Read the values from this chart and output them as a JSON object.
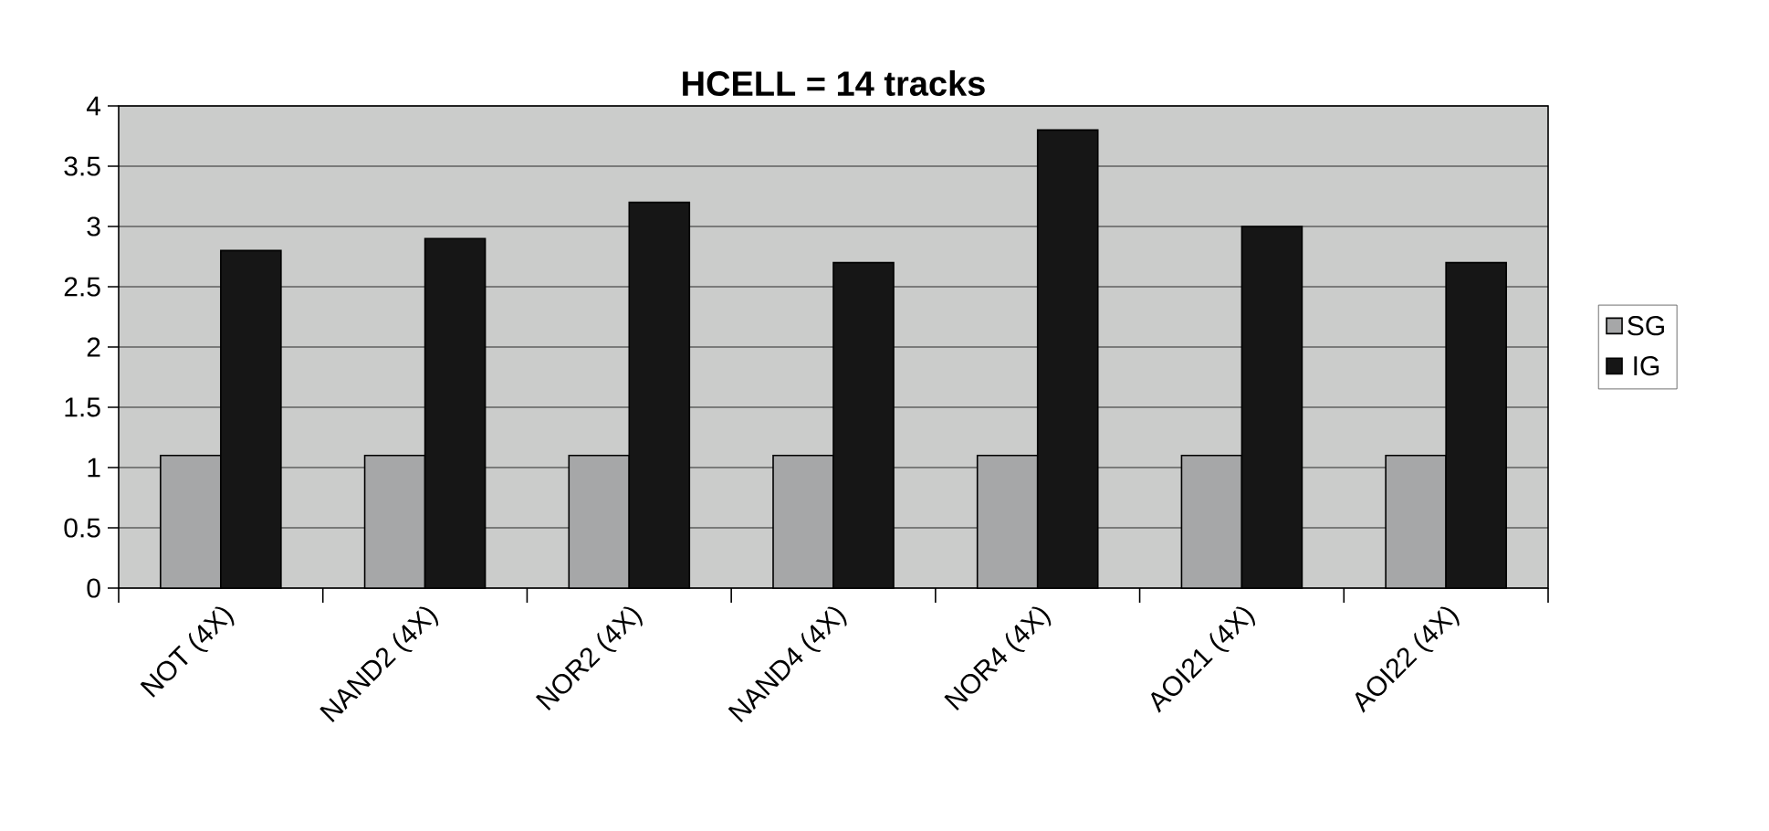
{
  "chart_data": {
    "type": "bar",
    "title": "HCELL = 14 tracks",
    "categories": [
      "NOT (4X)",
      "NAND2 (4X)",
      "NOR2 (4X)",
      "NAND4 (4X)",
      "NOR4 (4X)",
      "AOI21 (4X)",
      "AOI22 (4X)"
    ],
    "series": [
      {
        "name": "SG",
        "color": "#a6a7a8",
        "values": [
          1.1,
          1.1,
          1.1,
          1.1,
          1.1,
          1.1,
          1.1
        ]
      },
      {
        "name": "IG",
        "color": "#161616",
        "values": [
          2.8,
          2.9,
          3.2,
          2.7,
          3.8,
          3.0,
          2.7
        ]
      }
    ],
    "ylim": [
      0,
      4
    ],
    "yticks": [
      0,
      0.5,
      1,
      1.5,
      2,
      2.5,
      3,
      3.5,
      4
    ],
    "grid": "y",
    "legend": "right"
  }
}
